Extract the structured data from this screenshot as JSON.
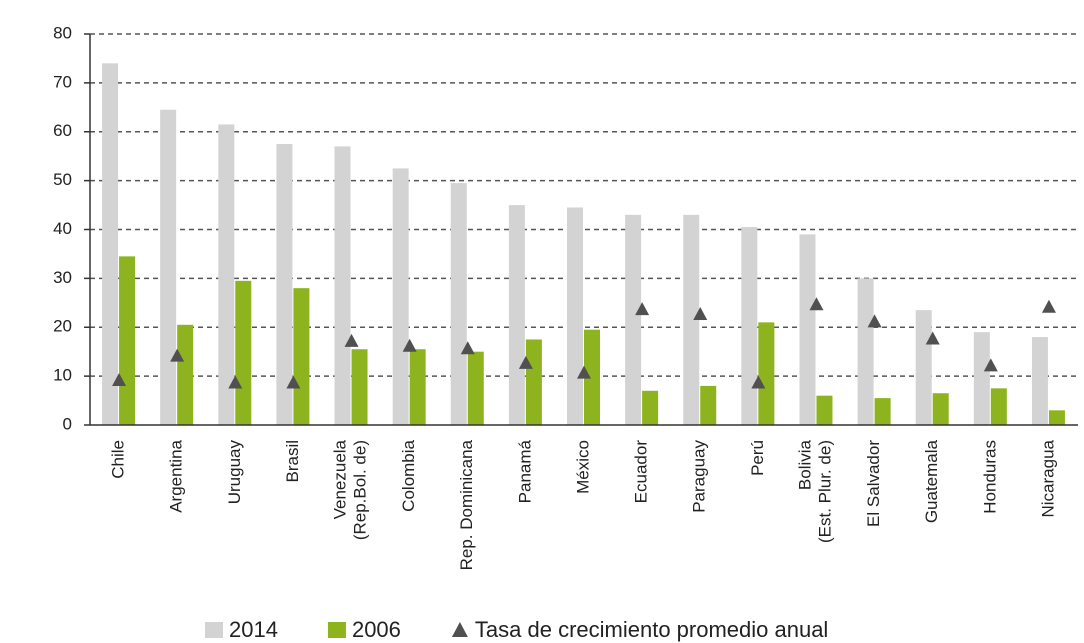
{
  "chart_data": {
    "type": "bar",
    "categories": [
      "Chile",
      "Argentina",
      "Uruguay",
      "Brasil",
      "Venezuela (Rep.Bol. de)",
      "Colombia",
      "Rep. Dominicana",
      "Panamá",
      "México",
      "Ecuador",
      "Paraguay",
      "Perú",
      "Bolivia (Est. Plur. de)",
      "El Salvador",
      "Guatemala",
      "Honduras",
      "Nicaragua"
    ],
    "series": [
      {
        "name": "2014",
        "color": "#d3d3d3",
        "marker": "bar",
        "values": [
          74,
          64.5,
          61.5,
          57.5,
          57,
          52.5,
          49.5,
          45,
          44.5,
          43,
          43,
          40.5,
          39,
          30,
          23.5,
          19,
          18
        ]
      },
      {
        "name": "2006",
        "color": "#8db41e",
        "marker": "bar",
        "values": [
          34.5,
          20.5,
          29.5,
          28,
          15.5,
          15.5,
          15,
          17.5,
          19.5,
          7,
          8,
          21,
          6,
          5.5,
          6.5,
          7.5,
          3
        ]
      },
      {
        "name": "Tasa de crecimiento promedio anual",
        "color": "#505050",
        "marker": "triangle",
        "values": [
          9,
          14,
          8.5,
          8.5,
          17,
          16,
          15.5,
          12.5,
          10.5,
          23.5,
          22.5,
          8.5,
          24.5,
          21,
          17.5,
          12,
          24
        ]
      }
    ],
    "ylim": [
      0,
      80
    ],
    "yticks": [
      0,
      10,
      20,
      30,
      40,
      50,
      60,
      70,
      80
    ],
    "grid": true
  }
}
